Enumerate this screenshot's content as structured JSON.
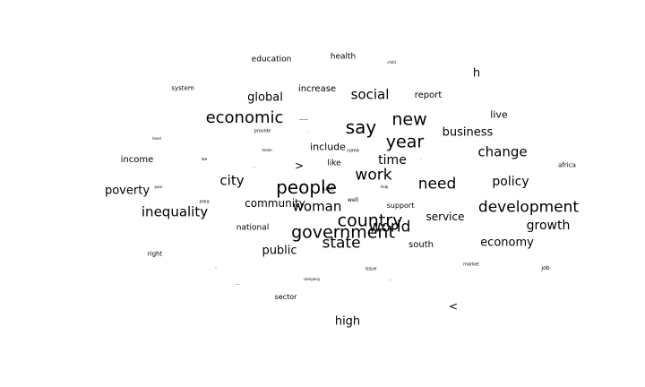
{
  "cloud": {
    "words": [
      {
        "id": "education",
        "text": "education"
      },
      {
        "id": "health",
        "text": "health"
      },
      {
        "id": "child",
        "text": "child"
      },
      {
        "id": "h",
        "text": "h"
      },
      {
        "id": "system",
        "text": "system"
      },
      {
        "id": "increase",
        "text": "increase"
      },
      {
        "id": "social",
        "text": "social"
      },
      {
        "id": "report",
        "text": "report"
      },
      {
        "id": "global",
        "text": "global"
      },
      {
        "id": "live",
        "text": "live"
      },
      {
        "id": "economic",
        "text": "economic"
      },
      {
        "id": "dash1",
        "text": "——"
      },
      {
        "id": "say",
        "text": "say"
      },
      {
        "id": "new",
        "text": "new"
      },
      {
        "id": "business",
        "text": "business"
      },
      {
        "id": "provide",
        "text": "provide"
      },
      {
        "id": "dot1",
        "text": "·"
      },
      {
        "id": "level",
        "text": "level"
      },
      {
        "id": "year",
        "text": "year"
      },
      {
        "id": "include",
        "text": "include"
      },
      {
        "id": "change",
        "text": "change"
      },
      {
        "id": "mean",
        "text": "mean"
      },
      {
        "id": "come",
        "text": "come"
      },
      {
        "id": "income",
        "text": "income"
      },
      {
        "id": "time",
        "text": "time"
      },
      {
        "id": "dot2",
        "text": "·"
      },
      {
        "id": "low",
        "text": "low"
      },
      {
        "id": "africa",
        "text": "africa"
      },
      {
        "id": "gt",
        "text": ">"
      },
      {
        "id": "like",
        "text": "like"
      },
      {
        "id": "dots1",
        "text": "..."
      },
      {
        "id": "work",
        "text": "work"
      },
      {
        "id": "city",
        "text": "city"
      },
      {
        "id": "policy",
        "text": "policy"
      },
      {
        "id": "poverty",
        "text": "poverty"
      },
      {
        "id": "poor",
        "text": "poor"
      },
      {
        "id": "people",
        "text": "people"
      },
      {
        "id": "use",
        "text": "use"
      },
      {
        "id": "help",
        "text": "help"
      },
      {
        "id": "need",
        "text": "need"
      },
      {
        "id": "area",
        "text": "area"
      },
      {
        "id": "community",
        "text": "community"
      },
      {
        "id": "well",
        "text": "well"
      },
      {
        "id": "support",
        "text": "support"
      },
      {
        "id": "development",
        "text": "development"
      },
      {
        "id": "woman",
        "text": "woman"
      },
      {
        "id": "inequality",
        "text": "inequality"
      },
      {
        "id": "service",
        "text": "service"
      },
      {
        "id": "country",
        "text": "country"
      },
      {
        "id": "world",
        "text": "world"
      },
      {
        "id": "growth",
        "text": "growth"
      },
      {
        "id": "national",
        "text": "national"
      },
      {
        "id": "government",
        "text": "government"
      },
      {
        "id": "state",
        "text": "state"
      },
      {
        "id": "economy",
        "text": "economy"
      },
      {
        "id": "south",
        "text": "south"
      },
      {
        "id": "public",
        "text": "public"
      },
      {
        "id": "right",
        "text": "right"
      },
      {
        "id": "market",
        "text": "market"
      },
      {
        "id": "dash2",
        "text": "-"
      },
      {
        "id": "issue",
        "text": "issue"
      },
      {
        "id": "job",
        "text": "job"
      },
      {
        "id": "company",
        "text": "company"
      },
      {
        "id": "dots2",
        "text": "..."
      },
      {
        "id": "dash3",
        "text": "—"
      },
      {
        "id": "sector",
        "text": "sector"
      },
      {
        "id": "lt",
        "text": "<"
      },
      {
        "id": "high",
        "text": "high"
      }
    ]
  }
}
